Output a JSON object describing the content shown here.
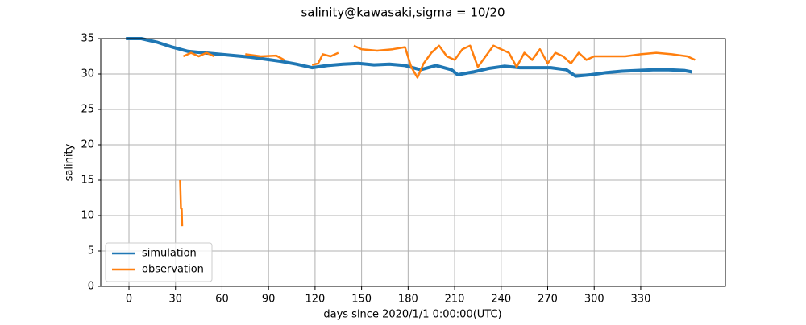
{
  "chart_data": {
    "type": "line",
    "title": "salinity@kawasaki,sigma = 10/20",
    "xlabel": "days since 2020/1/1 0:00:00(UTC)",
    "ylabel": "salinity",
    "xlim": [
      -18.2,
      384.6
    ],
    "ylim": [
      0,
      35
    ],
    "xticks": [
      0,
      30,
      60,
      90,
      120,
      150,
      180,
      210,
      240,
      270,
      300,
      330
    ],
    "yticks": [
      0,
      5,
      10,
      15,
      20,
      25,
      30,
      35
    ],
    "grid": true,
    "legend": "lower left",
    "series": [
      {
        "name": "simulation",
        "color": "#1f77b4",
        "x": [
          -2,
          8,
          18,
          28,
          38,
          48,
          58,
          68,
          78,
          88,
          98,
          108,
          118,
          128,
          138,
          148,
          158,
          168,
          178,
          188,
          198,
          208,
          212,
          222,
          232,
          242,
          252,
          262,
          272,
          282,
          288,
          298,
          308,
          318,
          328,
          338,
          348,
          358,
          363
        ],
        "values": [
          35,
          35,
          34.5,
          33.8,
          33.2,
          33,
          32.8,
          32.6,
          32.4,
          32.1,
          31.8,
          31.4,
          30.9,
          31.2,
          31.4,
          31.5,
          31.3,
          31.4,
          31.2,
          30.6,
          31.2,
          30.6,
          29.9,
          30.3,
          30.8,
          31.1,
          30.9,
          30.9,
          30.9,
          30.6,
          29.7,
          29.9,
          30.2,
          30.4,
          30.5,
          30.6,
          30.6,
          30.5,
          30.3
        ]
      },
      {
        "name": "observation",
        "color": "#ff7f0e",
        "x": [
          33,
          33.5,
          34,
          34.3,
          34.4,
          35,
          40,
          45,
          50,
          55,
          65,
          75,
          85,
          95,
          100,
          110,
          118,
          122,
          125,
          130,
          135,
          140,
          145,
          150,
          160,
          170,
          178,
          182,
          186,
          190,
          195,
          200,
          205,
          210,
          215,
          220,
          225,
          230,
          235,
          240,
          245,
          250,
          255,
          260,
          265,
          270,
          275,
          280,
          285,
          290,
          295,
          300,
          310,
          320,
          330,
          340,
          350,
          360,
          365
        ],
        "values": [
          15,
          11,
          11,
          8.5,
          null,
          32.5,
          33,
          32.5,
          33,
          32.5,
          null,
          32.8,
          32.5,
          32.6,
          32,
          null,
          31.3,
          31.5,
          32.8,
          32.5,
          33,
          null,
          34,
          33.5,
          33.3,
          33.5,
          33.8,
          31,
          29.5,
          31.5,
          33,
          34,
          32.5,
          32,
          33.5,
          34,
          31,
          32.5,
          34,
          33.5,
          33,
          31,
          33,
          32,
          33.5,
          31.5,
          33,
          32.5,
          31.5,
          33,
          32,
          32.5,
          32.5,
          32.5,
          32.8,
          33,
          32.8,
          32.5,
          32
        ]
      }
    ]
  }
}
